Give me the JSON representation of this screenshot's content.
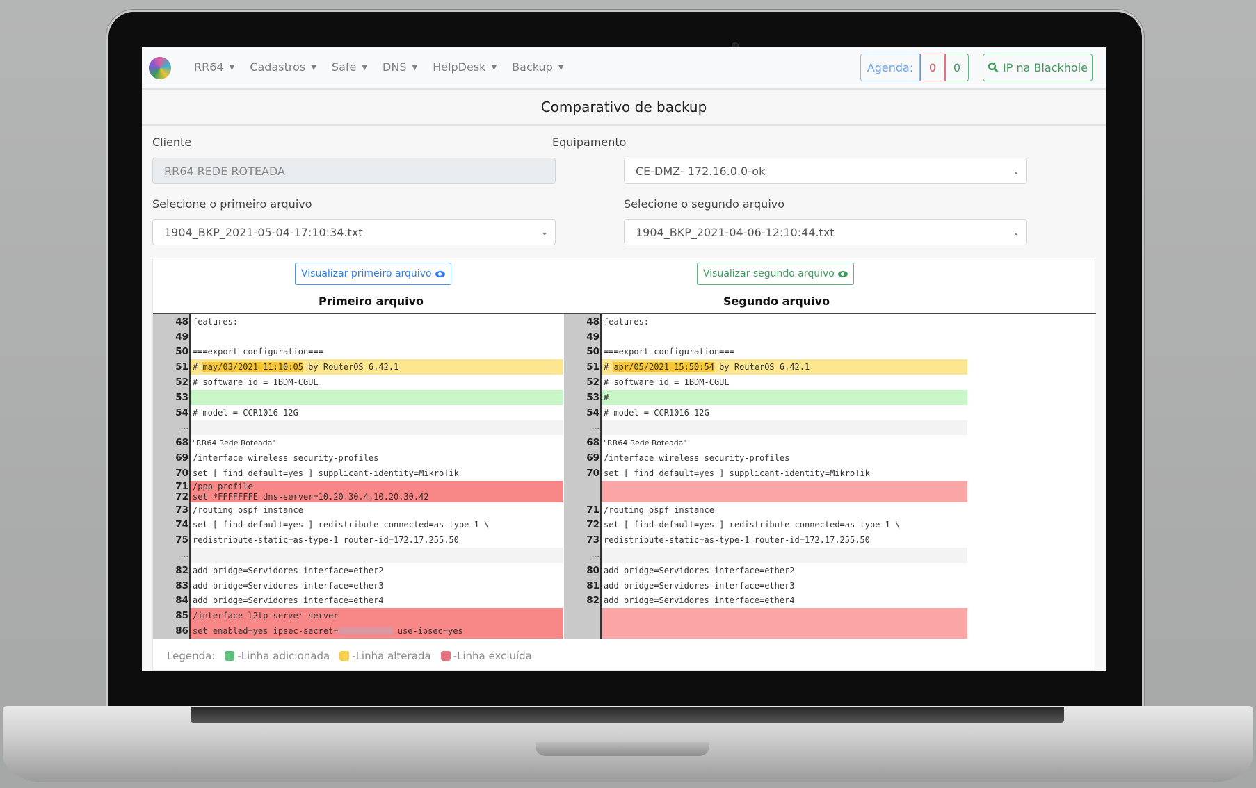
{
  "nav": {
    "menu": [
      "RR64",
      "Cadastros",
      "Safe",
      "DNS",
      "HelpDesk",
      "Backup"
    ],
    "agenda_label": "Agenda:",
    "agenda_red": "0",
    "agenda_green": "0",
    "blackhole_label": "IP na Blackhole"
  },
  "page_title": "Comparativo de backup",
  "form": {
    "cliente_label": "Cliente",
    "cliente_value": "RR64 REDE ROTEADA",
    "equipamento_label": "Equipamento",
    "equipamento_value": "CE-DMZ- 172.16.0.0-ok",
    "first_file_label": "Selecione o primeiro arquivo",
    "first_file_value": "1904_BKP_2021-05-04-17:10:34.txt",
    "second_file_label": "Selecione o segundo arquivo",
    "second_file_value": "1904_BKP_2021-04-06-12:10:44.txt"
  },
  "compare": {
    "view_first_label": "Visualizar primeiro arquivo",
    "view_second_label": "Visualizar segundo arquivo",
    "first_header": "Primeiro arquivo",
    "second_header": "Segundo arquivo",
    "left_rows": [
      {
        "num": "48",
        "text": "features:",
        "type": "normal"
      },
      {
        "num": "49",
        "text": "",
        "type": "normal"
      },
      {
        "num": "50",
        "text": "===export configuration===",
        "type": "normal"
      },
      {
        "num": "51",
        "pre": "# ",
        "hl": "may/03/2021 11:10:05",
        "text": " by RouterOS 6.42.1",
        "type": "changed"
      },
      {
        "num": "52",
        "text": "# software id = 1BDM-CGUL",
        "type": "normal"
      },
      {
        "num": "53",
        "text": "",
        "type": "added"
      },
      {
        "num": "54",
        "text": "# model = CCR1016-12G",
        "type": "normal"
      },
      {
        "num": "...",
        "text": "",
        "type": "gap"
      },
      {
        "num": "68",
        "text": "\"RR64 Rede Roteada\"",
        "type": "normal",
        "sans": true
      },
      {
        "num": "69",
        "text": "/interface wireless security-profiles",
        "type": "normal"
      },
      {
        "num": "70",
        "text": "set [ find default=yes ] supplicant-identity=MikroTik",
        "type": "normal"
      },
      {
        "num": "71",
        "text": "/ppp profile",
        "type": "deleted",
        "tight": true
      },
      {
        "num": "72",
        "text": "set *FFFFFFFE dns-server=10.20.30.4,10.20.30.42",
        "type": "deleted",
        "tight": true
      },
      {
        "num": "73",
        "text": "/routing ospf instance",
        "type": "normal"
      },
      {
        "num": "74",
        "text": "set [ find default=yes ] redistribute-connected=as-type-1 \\",
        "type": "normal"
      },
      {
        "num": "75",
        "text": "redistribute-static=as-type-1 router-id=172.17.255.50",
        "type": "normal"
      },
      {
        "num": "...",
        "text": "",
        "type": "gap"
      },
      {
        "num": "82",
        "text": "add bridge=Servidores interface=ether2",
        "type": "normal"
      },
      {
        "num": "83",
        "text": "add bridge=Servidores interface=ether3",
        "type": "normal"
      },
      {
        "num": "84",
        "text": "add bridge=Servidores interface=ether4",
        "type": "normal"
      },
      {
        "num": "85",
        "text": "/interface l2tp-server server",
        "type": "deleted"
      },
      {
        "num": "86",
        "text": "set enabled=yes ipsec-secret=",
        "blurred": true,
        "post": " use-ipsec=yes",
        "type": "deleted"
      }
    ],
    "right_rows": [
      {
        "num": "48",
        "text": "features:",
        "type": "normal"
      },
      {
        "num": "49",
        "text": "",
        "type": "normal"
      },
      {
        "num": "50",
        "text": "===export configuration===",
        "type": "normal"
      },
      {
        "num": "51",
        "pre": "# ",
        "hl": "apr/05/2021 15:50:54",
        "text": " by RouterOS 6.42.1",
        "type": "changed"
      },
      {
        "num": "52",
        "text": "# software id = 1BDM-CGUL",
        "type": "normal"
      },
      {
        "num": "53",
        "text": "#",
        "type": "added"
      },
      {
        "num": "54",
        "text": "# model = CCR1016-12G",
        "type": "normal"
      },
      {
        "num": "...",
        "text": "",
        "type": "gap"
      },
      {
        "num": "68",
        "text": "\"RR64 Rede Roteada\"",
        "type": "normal",
        "sans": true
      },
      {
        "num": "69",
        "text": "/interface wireless security-profiles",
        "type": "normal"
      },
      {
        "num": "70",
        "text": "set [ find default=yes ] supplicant-identity=MikroTik",
        "type": "normal"
      },
      {
        "num": "",
        "text": "",
        "type": "deleted-empty",
        "tight": true
      },
      {
        "num": "",
        "text": "",
        "type": "deleted-empty",
        "tight": true
      },
      {
        "num": "71",
        "text": "/routing ospf instance",
        "type": "normal"
      },
      {
        "num": "72",
        "text": "set [ find default=yes ] redistribute-connected=as-type-1 \\",
        "type": "normal"
      },
      {
        "num": "73",
        "text": "redistribute-static=as-type-1 router-id=172.17.255.50",
        "type": "normal"
      },
      {
        "num": "...",
        "text": "",
        "type": "gap"
      },
      {
        "num": "80",
        "text": "add bridge=Servidores interface=ether2",
        "type": "normal"
      },
      {
        "num": "81",
        "text": "add bridge=Servidores interface=ether3",
        "type": "normal"
      },
      {
        "num": "82",
        "text": "add bridge=Servidores interface=ether4",
        "type": "normal"
      },
      {
        "num": "",
        "text": "",
        "type": "deleted-empty"
      },
      {
        "num": "",
        "text": "",
        "type": "deleted-empty"
      }
    ]
  },
  "legend": {
    "label": "Legenda:",
    "items": [
      {
        "label": "-Linha adicionada",
        "color": "#5fbf7f"
      },
      {
        "label": "-Linha alterada",
        "color": "#f7cf4a"
      },
      {
        "label": "-Linha excluída",
        "color": "#e67480"
      }
    ]
  },
  "colors": {
    "primary": "#2f7ee8",
    "success": "#3f9a5c",
    "danger": "#e05561",
    "changed": "#fde690",
    "added": "#c9f7c7",
    "deleted": "#f88787"
  }
}
